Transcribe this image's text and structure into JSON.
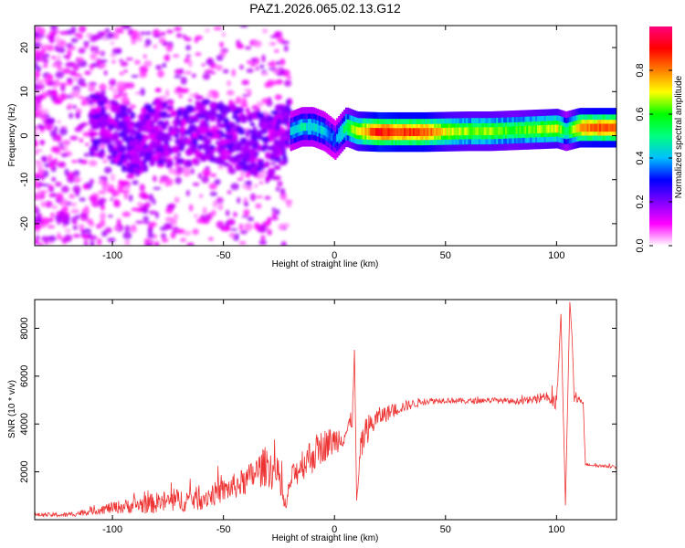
{
  "chart_data": [
    {
      "type": "heatmap",
      "title": "PAZ1.2026.065.02.13.G12",
      "xlabel": "Height of straight line (km)",
      "ylabel": "Frequency (Hz)",
      "xlim": [
        -135,
        127
      ],
      "ylim": [
        -25,
        25
      ],
      "xticks": [
        -100,
        -50,
        0,
        50,
        100
      ],
      "yticks": [
        -20,
        -10,
        0,
        10,
        20
      ],
      "colorbar": {
        "label": "Normalized spectral amplitude",
        "range": [
          0,
          1
        ],
        "ticks": [
          0.0,
          0.2,
          0.4,
          0.6,
          0.8
        ],
        "colormap": [
          "#ffffff",
          "#ff00ff",
          "#7f00ff",
          "#0000ff",
          "#00bfff",
          "#00ff7f",
          "#00ff00",
          "#ffff00",
          "#ff7f00",
          "#ff0000",
          "#ff007f"
        ]
      },
      "ridge": {
        "description_x": [
          -110,
          -100,
          -90,
          -80,
          -70,
          -60,
          -50,
          -40,
          -30,
          -25,
          -20,
          -15,
          -10,
          -5,
          0,
          5,
          10,
          20,
          30,
          40,
          50,
          60,
          70,
          80,
          90,
          100,
          104,
          110,
          120,
          127
        ],
        "frequency": [
          3,
          1,
          -2,
          1,
          -1,
          2,
          0,
          -1,
          -3,
          0,
          1,
          2,
          2,
          1,
          -1,
          2,
          1,
          0.8,
          0.8,
          0.8,
          0.9,
          1.0,
          1.0,
          1.2,
          1.4,
          1.6,
          1.0,
          1.8,
          1.8,
          1.8
        ],
        "amplitude": [
          0.25,
          0.3,
          0.3,
          0.3,
          0.3,
          0.3,
          0.25,
          0.2,
          0.25,
          0.3,
          0.4,
          0.45,
          0.45,
          0.4,
          0.35,
          0.55,
          0.7,
          0.9,
          0.85,
          0.85,
          0.7,
          0.65,
          0.65,
          0.6,
          0.65,
          0.7,
          0.5,
          0.8,
          0.85,
          0.85
        ]
      }
    },
    {
      "type": "line",
      "title": "",
      "xlabel": "Height of straight line (km)",
      "ylabel": "SNR (10 * v/v)",
      "xlim": [
        -135,
        127
      ],
      "ylim": [
        0,
        9200
      ],
      "xticks": [
        -100,
        -50,
        0,
        50,
        100
      ],
      "yticks": [
        2000,
        4000,
        6000,
        8000
      ],
      "series": [
        {
          "name": "SNR",
          "color": "#ee3333",
          "x": [
            -135,
            -120,
            -110,
            -100,
            -90,
            -80,
            -70,
            -60,
            -50,
            -40,
            -35,
            -30,
            -25,
            -22,
            -20,
            -15,
            -10,
            -5,
            0,
            5,
            8,
            9,
            10,
            12,
            15,
            20,
            30,
            40,
            50,
            60,
            70,
            80,
            90,
            95,
            100,
            102,
            104,
            106,
            107,
            108,
            110,
            112,
            113,
            115,
            120,
            127
          ],
          "y": [
            200,
            200,
            350,
            500,
            600,
            700,
            800,
            900,
            1200,
            1600,
            2000,
            2300,
            1700,
            400,
            1600,
            2300,
            2700,
            3100,
            3300,
            3600,
            4200,
            7100,
            800,
            3100,
            3800,
            4300,
            4700,
            4950,
            5000,
            4950,
            5000,
            4950,
            5000,
            5200,
            4800,
            8600,
            600,
            9100,
            7600,
            5000,
            5000,
            5000,
            2300,
            2300,
            2250,
            2200
          ],
          "noise_amplitude": [
            80,
            100,
            150,
            250,
            350,
            450,
            500,
            500,
            500,
            600,
            700,
            900,
            800,
            200,
            500,
            700,
            800,
            700,
            600,
            500,
            400,
            0,
            0,
            700,
            600,
            400,
            250,
            150,
            120,
            120,
            120,
            120,
            150,
            250,
            400,
            0,
            0,
            0,
            0,
            200,
            150,
            150,
            60,
            60,
            60,
            60
          ]
        }
      ]
    }
  ]
}
